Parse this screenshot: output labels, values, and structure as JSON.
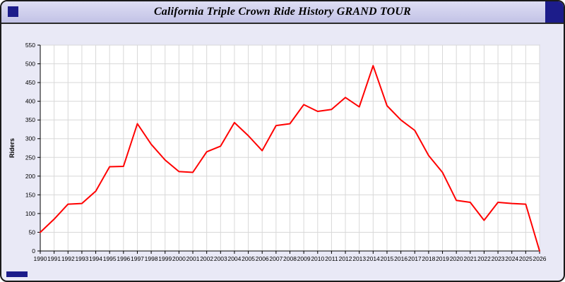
{
  "window": {
    "title": "California Triple Crown Ride History GRAND TOUR"
  },
  "colors": {
    "title_bar_accent": "#1c1c8a",
    "panel_background": "#e9e9f6",
    "plot_background": "#ffffff",
    "gridline": "#d8d8d8",
    "line": "#ff0000"
  },
  "chart_data": {
    "type": "line",
    "title": "California Triple Crown Ride History GRAND TOUR",
    "xlabel": "",
    "ylabel": "Riders",
    "ylim": [
      0,
      550
    ],
    "ytick_interval": 50,
    "grid": true,
    "legend_position": "none",
    "x": [
      1990,
      1991,
      1992,
      1993,
      1994,
      1995,
      1996,
      1997,
      1998,
      1999,
      2000,
      2001,
      2002,
      2003,
      2004,
      2005,
      2006,
      2007,
      2008,
      2009,
      2010,
      2011,
      2012,
      2013,
      2014,
      2015,
      2016,
      2017,
      2018,
      2019,
      2020,
      2021,
      2022,
      2023,
      2024,
      2025,
      2026
    ],
    "series": [
      {
        "name": "Riders",
        "color": "#ff0000",
        "values": [
          50,
          85,
          125,
          127,
          160,
          225,
          226,
          340,
          285,
          243,
          212,
          210,
          265,
          280,
          343,
          308,
          268,
          335,
          340,
          391,
          373,
          378,
          410,
          385,
          495,
          388,
          350,
          322,
          255,
          210,
          135,
          130,
          82,
          130,
          127,
          125,
          0
        ]
      }
    ]
  }
}
